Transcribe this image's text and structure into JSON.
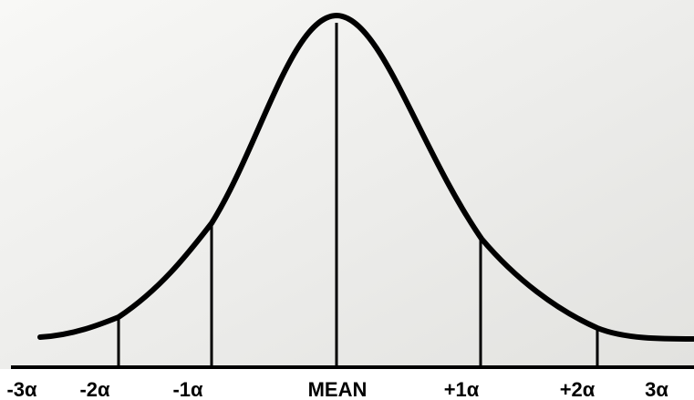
{
  "labels": {
    "neg3": "-3α",
    "neg2": "-2α",
    "neg1": "-1α",
    "mean": "MEAN",
    "pos1": "+1α",
    "pos2": "+2α",
    "pos3": "3α"
  },
  "colors": {
    "curve": "#000000",
    "paper_light": "#f7f7f5",
    "paper_dark": "#e3e3e0",
    "background": "#ffffff"
  }
}
